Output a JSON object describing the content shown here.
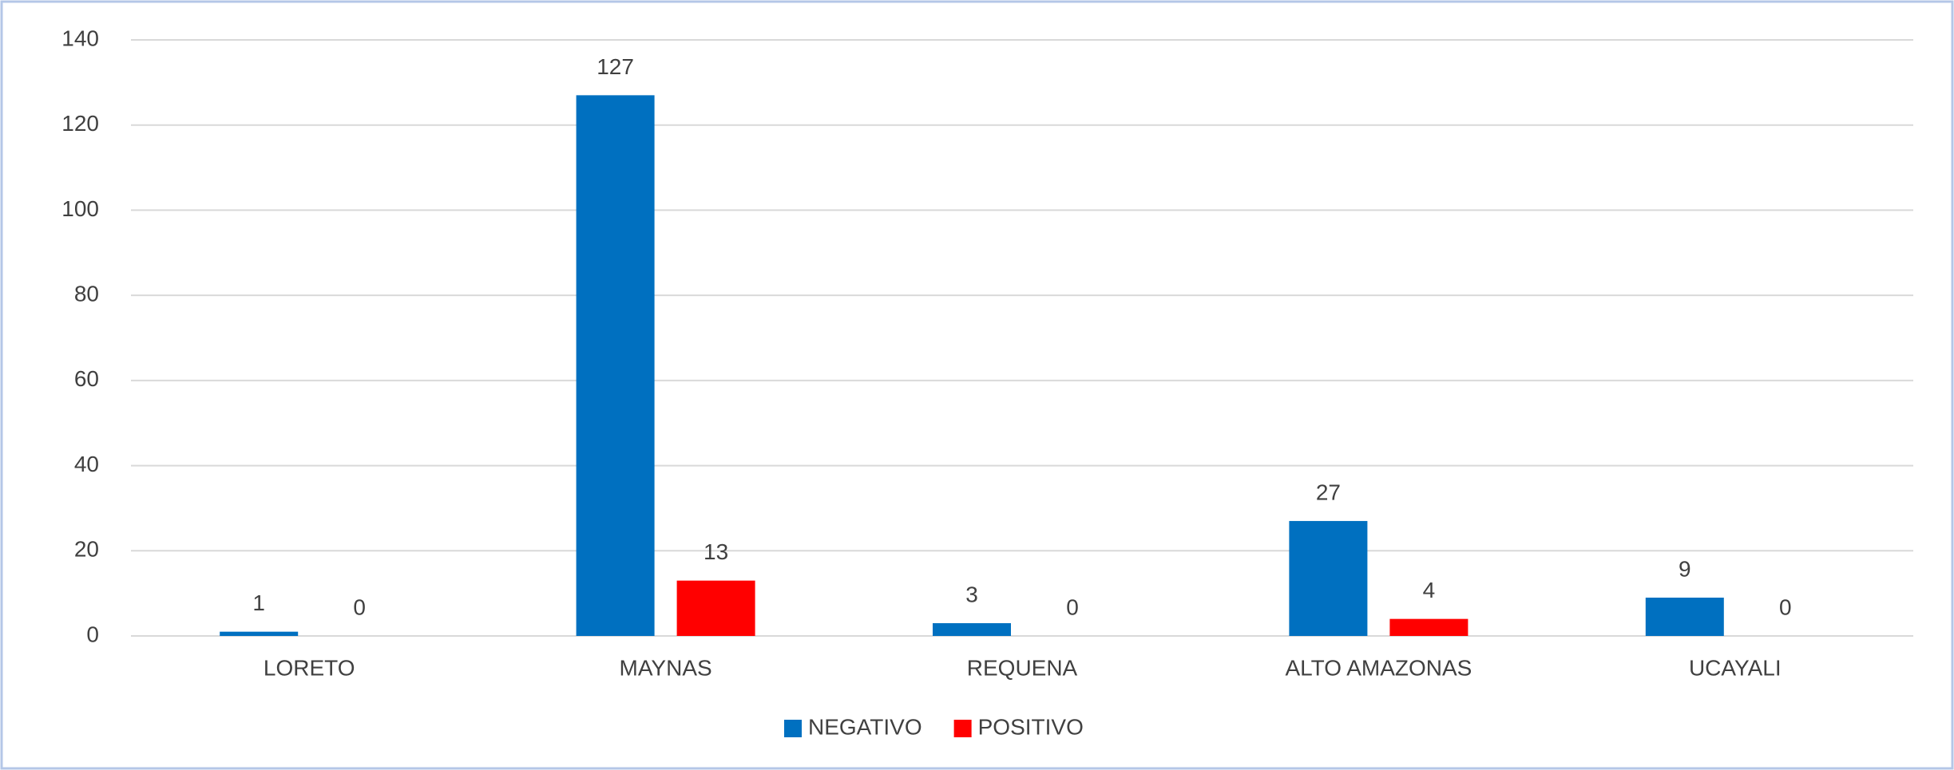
{
  "chart_data": {
    "type": "bar",
    "categories": [
      "LORETO",
      "MAYNAS",
      "REQUENA",
      "ALTO AMAZONAS",
      "UCAYALI"
    ],
    "series": [
      {
        "name": "NEGATIVO",
        "color": "#0070c0",
        "values": [
          1,
          127,
          3,
          27,
          9
        ]
      },
      {
        "name": "POSITIVO",
        "color": "#ff0000",
        "values": [
          0,
          13,
          0,
          4,
          0
        ]
      }
    ],
    "ylim": [
      0,
      140
    ],
    "yticks": [
      0,
      20,
      40,
      60,
      80,
      100,
      120,
      140
    ],
    "grid": true,
    "legend": "bottom"
  }
}
